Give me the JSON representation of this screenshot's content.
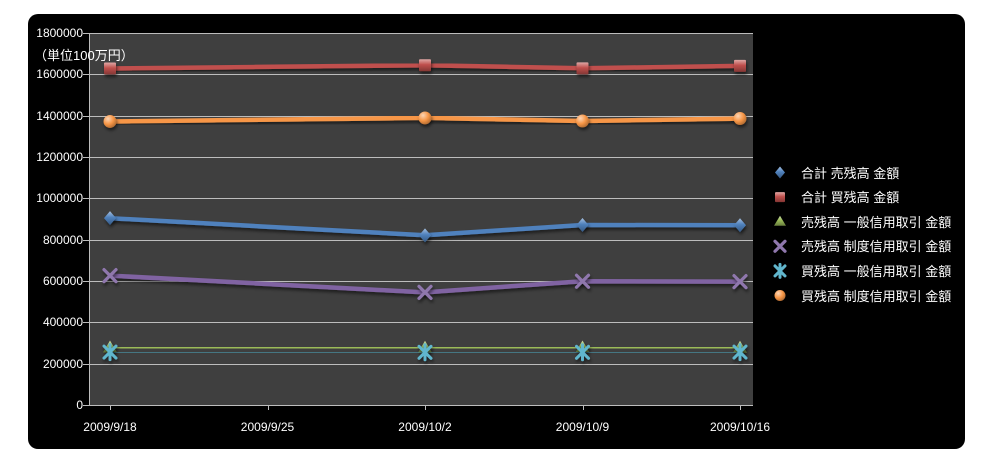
{
  "page": {
    "background": "#ffffff",
    "chart_background": "#000000",
    "plot_background": "#3f3f3f",
    "gridline_color": "#bdbdbd",
    "text_color": "#ffffff"
  },
  "chart_data": {
    "type": "line",
    "title": "",
    "unit_note": "（単位100万円）",
    "xlabel": "",
    "ylabel": "",
    "ylim": [
      0,
      1800000
    ],
    "y_tick_step": 200000,
    "y_tick_labels": [
      "0",
      "200000",
      "400000",
      "600000",
      "800000",
      "1000000",
      "1200000",
      "1400000",
      "1600000",
      "1800000"
    ],
    "x_tick_labels": [
      "2009/9/18",
      "2009/9/25",
      "2009/10/2",
      "2009/10/9",
      "2009/10/16"
    ],
    "x": [
      "2009/9/18",
      "2009/10/2",
      "2009/10/9",
      "2009/10/16"
    ],
    "grid": true,
    "legend_position": "right",
    "series": [
      {
        "name": "合計 売残高 金額",
        "color": "#4F81BD",
        "marker": "diamond",
        "values": [
          904000,
          821000,
          871000,
          870000
        ]
      },
      {
        "name": "合計 買残高 金額",
        "color": "#C0504D",
        "marker": "square",
        "values": [
          1628000,
          1644000,
          1629000,
          1641000
        ]
      },
      {
        "name": "売残高 一般信用取引 金額",
        "color": "#9BBB59",
        "marker": "triangle",
        "values": [
          278000,
          277000,
          278000,
          277000
        ]
      },
      {
        "name": "売残高 制度信用取引 金額",
        "color": "#8064A2",
        "marker": "x",
        "values": [
          626000,
          545000,
          599000,
          597000
        ]
      },
      {
        "name": "買残高 一般信用取引 金額",
        "color": "#4BACC6",
        "marker": "asterisk",
        "values": [
          256000,
          255000,
          255000,
          256000
        ]
      },
      {
        "name": "買残高 制度信用取引 金額",
        "color": "#F79646",
        "marker": "circle",
        "values": [
          1372000,
          1389000,
          1374000,
          1386000
        ]
      }
    ]
  }
}
